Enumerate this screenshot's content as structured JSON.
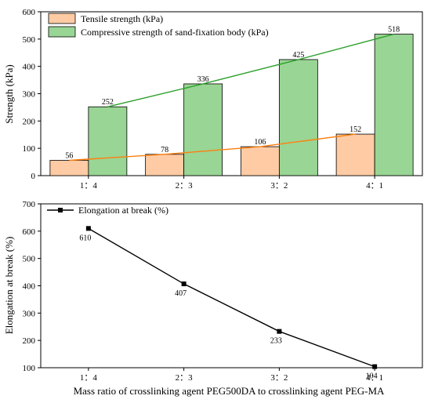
{
  "chart_data": [
    {
      "type": "bar",
      "categories": [
        "1：4",
        "2：3",
        "3：2",
        "4：1"
      ],
      "ylabel": "Strength (kPa)",
      "ylim": [
        0,
        600
      ],
      "yticks": [
        0,
        100,
        200,
        300,
        400,
        500,
        600
      ],
      "grid": false,
      "legend_position": "top-left",
      "series": [
        {
          "name": "Tensile strength (kPa)",
          "values": [
            56,
            78,
            106,
            152
          ],
          "color": "#FFCBA4",
          "trend_color": "#FF7F0E"
        },
        {
          "name": "Compressive strength of sand-fixation body (kPa)",
          "values": [
            252,
            336,
            425,
            518
          ],
          "color": "#99D594",
          "trend_color": "#2CA02C"
        }
      ]
    },
    {
      "type": "line",
      "categories": [
        "1：4",
        "2：3",
        "3：2",
        "4：1"
      ],
      "xlabel": "Mass ratio of crosslinking agent PEG500DA to crosslinking agent PEG-MA",
      "ylabel": "Elongation at break (%)",
      "ylim": [
        100,
        700
      ],
      "yticks": [
        100,
        200,
        300,
        400,
        500,
        600,
        700
      ],
      "grid": false,
      "legend_position": "top-left",
      "series": [
        {
          "name": "Elongation at break (%)",
          "values": [
            610,
            407,
            233,
            104
          ],
          "color": "#000000"
        }
      ]
    }
  ]
}
